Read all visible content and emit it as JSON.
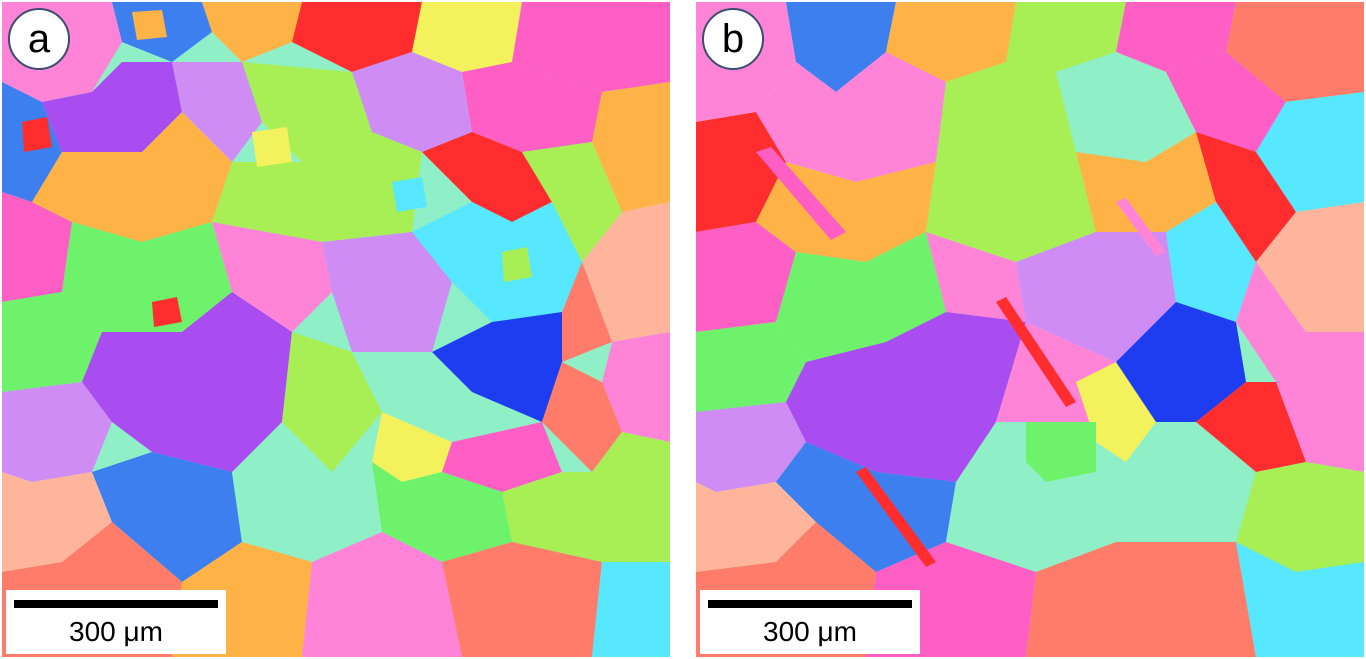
{
  "panels": [
    {
      "label": "a",
      "scale_bar": "300 μm"
    },
    {
      "label": "b",
      "scale_bar": "300 μm"
    }
  ],
  "colors": {
    "red": "#ff2d2d",
    "magenta": "#ff5fc4",
    "violet": "#a94cf0",
    "blue": "#3e7ff0",
    "cyan": "#57e8ff",
    "green": "#6ff26b",
    "lime": "#a7ef55",
    "yellow": "#f4f25c",
    "orange": "#ffb347",
    "peach": "#ffb59b",
    "salmon": "#ff7c6b",
    "mint": "#8ff0c8",
    "lavender": "#cf8cf5",
    "pink": "#ff84d8"
  }
}
